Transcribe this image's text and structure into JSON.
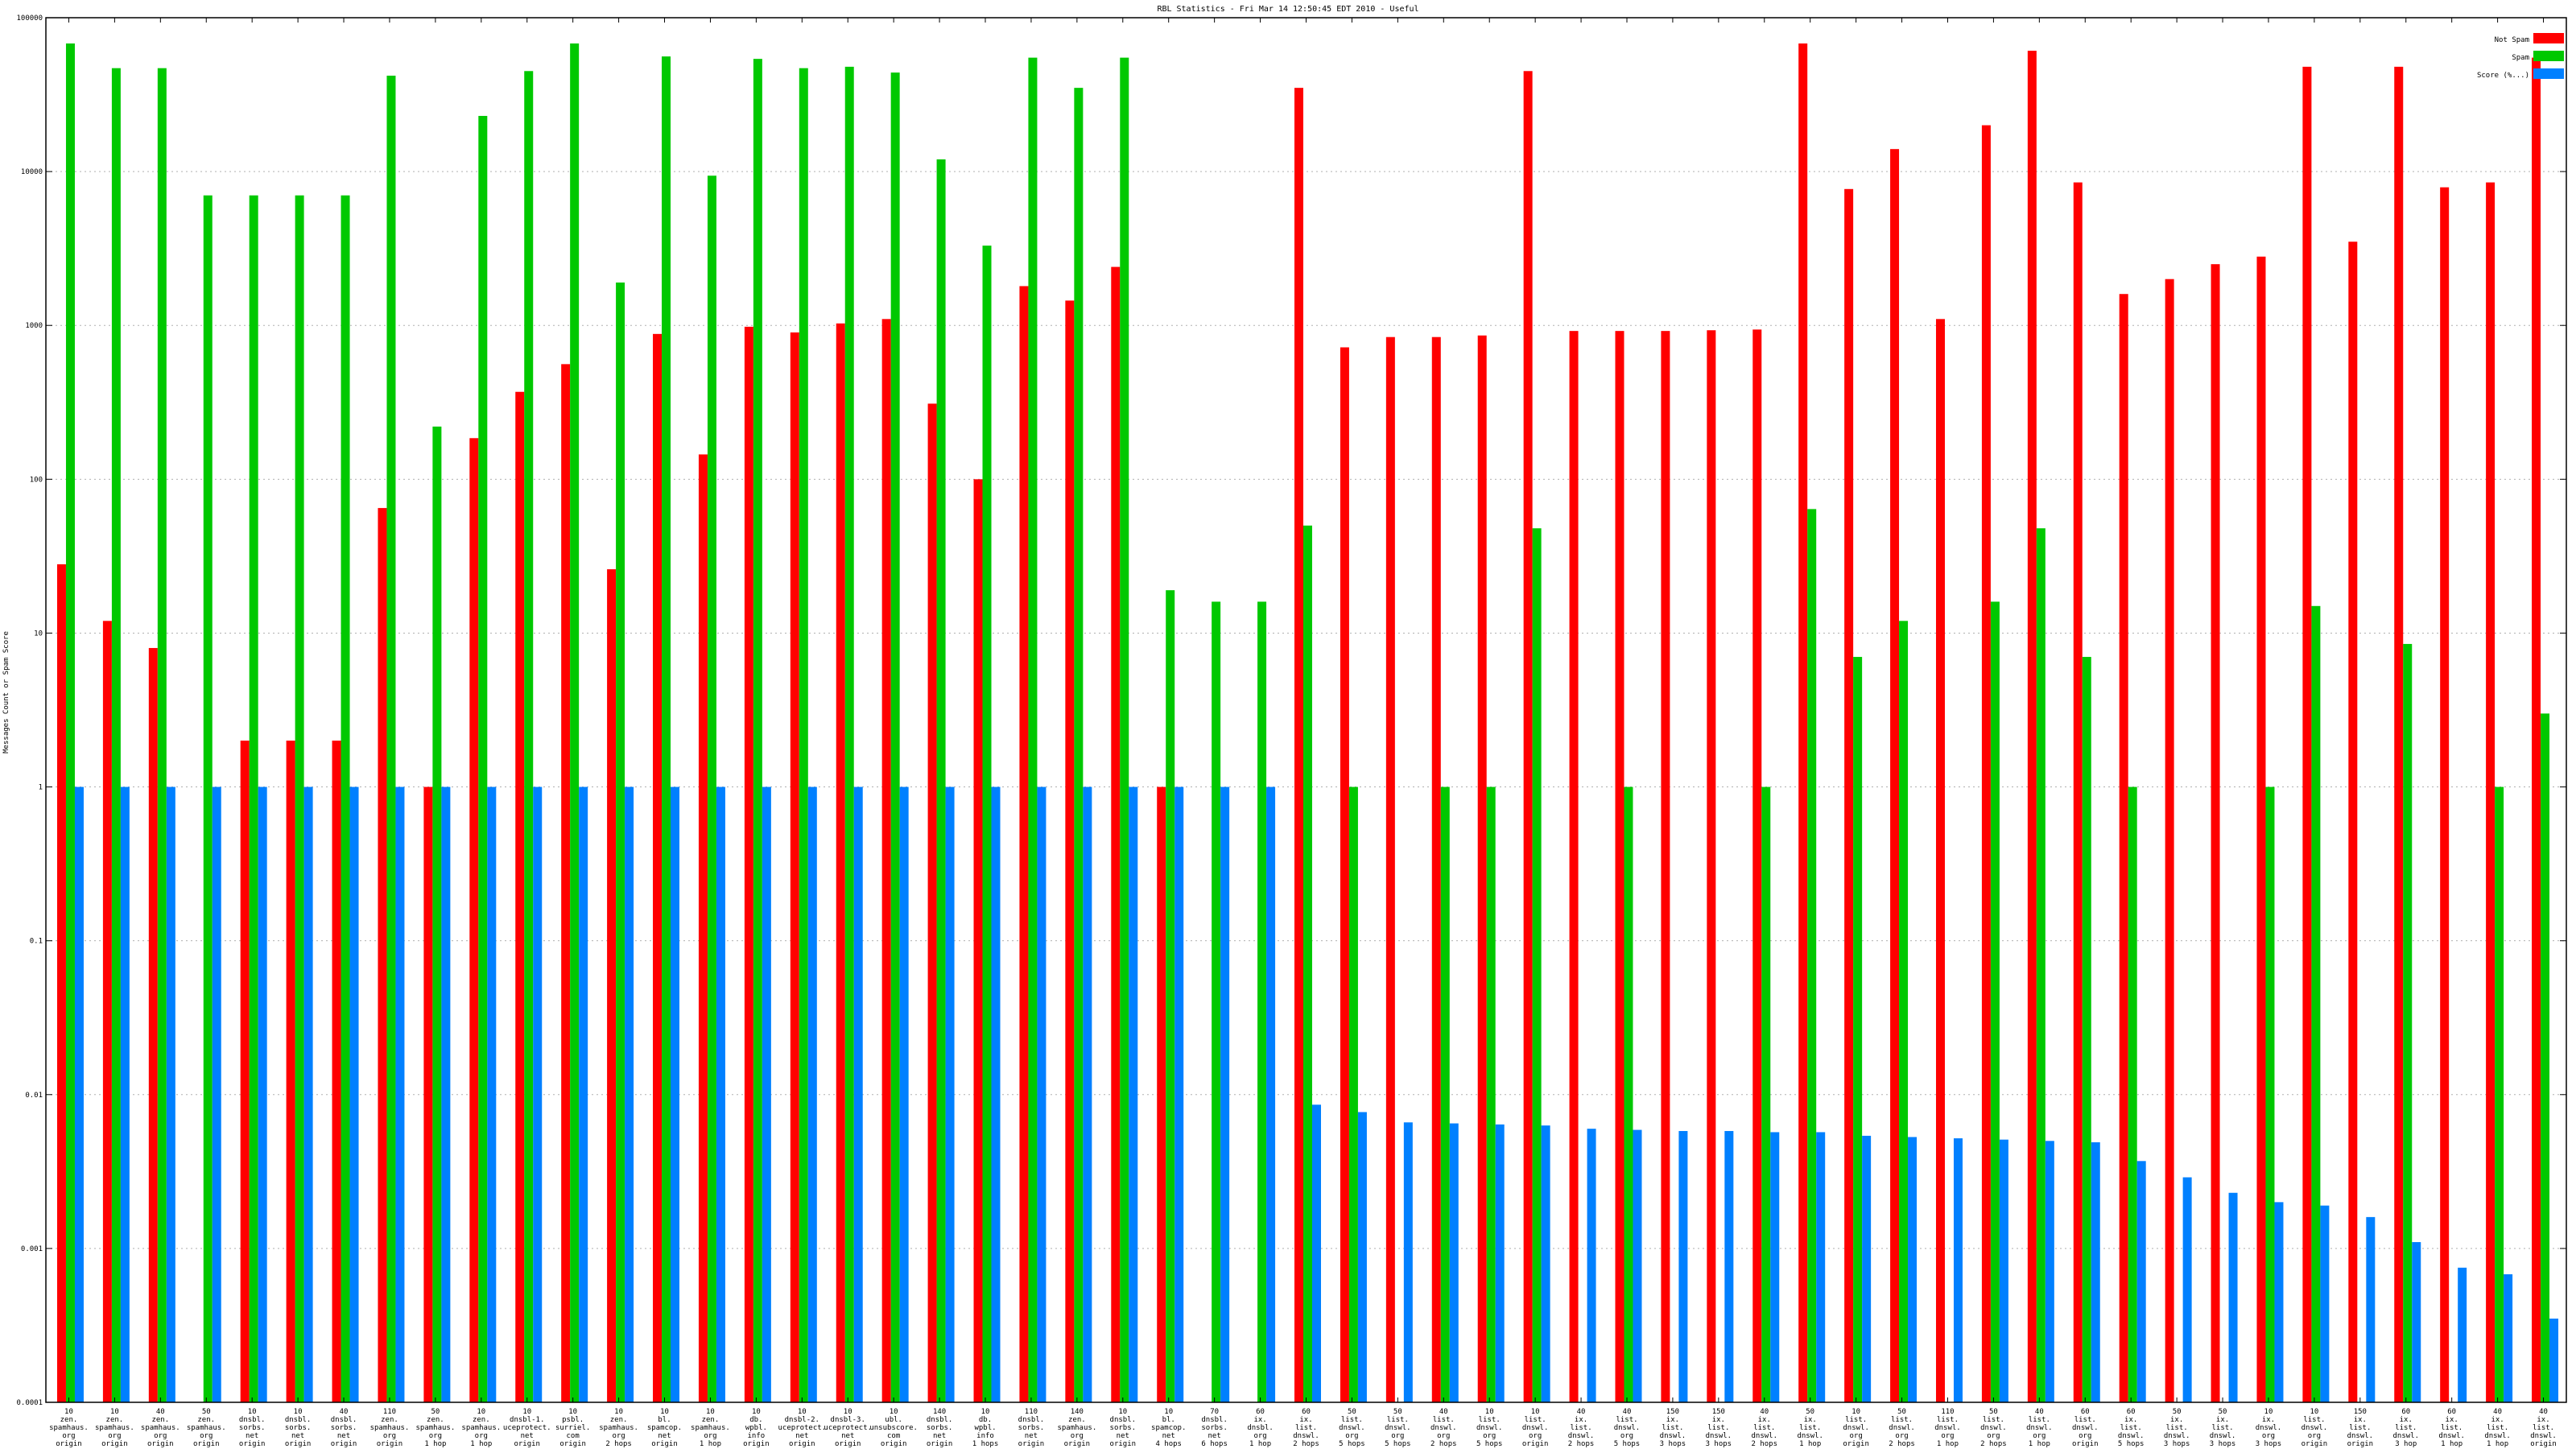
{
  "chart_data": {
    "type": "bar",
    "title": "RBL Statistics - Fri Mar 14 12:50:45 EDT 2010 - Useful",
    "ylabel": "Messages Count or Spam Score",
    "yscale": "log",
    "ylim": [
      0.0001,
      100000
    ],
    "yticks": [
      "0.0001",
      "0.001",
      "0.01",
      "0.1",
      "1",
      "10",
      "100",
      "1000",
      "10000",
      "100000"
    ],
    "grid": true,
    "legend_position": "top-right",
    "colors": {
      "not_spam": "#ff0000",
      "spam": "#00c800",
      "score": "#0080ff"
    },
    "categories": [
      [
        "10",
        "zen.",
        "spamhaus.",
        "org",
        "origin"
      ],
      [
        "10",
        "zen.",
        "spamhaus.",
        "org",
        "origin"
      ],
      [
        "40",
        "zen.",
        "spamhaus.",
        "org",
        "origin"
      ],
      [
        "50",
        "zen.",
        "spamhaus.",
        "org",
        "origin"
      ],
      [
        "10",
        "dnsbl.",
        "sorbs.",
        "net",
        "origin"
      ],
      [
        "10",
        "dnsbl.",
        "sorbs.",
        "net",
        "origin"
      ],
      [
        "40",
        "dnsbl.",
        "sorbs.",
        "net",
        "origin"
      ],
      [
        "110",
        "zen.",
        "spamhaus.",
        "org",
        "origin"
      ],
      [
        "50",
        "zen.",
        "spamhaus.",
        "org",
        "1 hop"
      ],
      [
        "10",
        "zen.",
        "spamhaus.",
        "org",
        "1 hop"
      ],
      [
        "10",
        "dnsbl-1.",
        "uceprotect.",
        "net",
        "origin"
      ],
      [
        "10",
        "psbl.",
        "surriel.",
        "com",
        "origin"
      ],
      [
        "10",
        "zen.",
        "spamhaus.",
        "org",
        "2 hops"
      ],
      [
        "10",
        "bl.",
        "spamcop.",
        "net",
        "origin"
      ],
      [
        "10",
        "zen.",
        "spamhaus.",
        "org",
        "1 hop"
      ],
      [
        "10",
        "db.",
        "wpbl.",
        "info",
        "origin"
      ],
      [
        "10",
        "dnsbl-2.",
        "uceprotect.",
        "net",
        "origin"
      ],
      [
        "10",
        "dnsbl-3.",
        "uceprotect.",
        "net",
        "origin"
      ],
      [
        "10",
        "ubl.",
        "unsubscore.",
        "com",
        "origin"
      ],
      [
        "140",
        "dnsbl.",
        "sorbs.",
        "net",
        "origin"
      ],
      [
        "10",
        "db.",
        "wpbl.",
        "info",
        "1 hops"
      ],
      [
        "110",
        "dnsbl.",
        "sorbs.",
        "net",
        "origin"
      ],
      [
        "140",
        "zen.",
        "spamhaus.",
        "org",
        "origin"
      ],
      [
        "10",
        "dnsbl.",
        "sorbs.",
        "net",
        "origin"
      ],
      [
        "10",
        "bl.",
        "spamcop.",
        "net",
        "4 hops"
      ],
      [
        "70",
        "dnsbl.",
        "sorbs.",
        "net",
        "6 hops"
      ],
      [
        "60",
        "ix.",
        "dnsbl.",
        "org",
        "1 hop"
      ],
      [
        "60",
        "ix.",
        "list.",
        "dnswl.",
        "2 hops"
      ],
      [
        "50",
        "list.",
        "dnswl.",
        "org",
        "5 hops"
      ],
      [
        "50",
        "list.",
        "dnswl.",
        "org",
        "5 hops"
      ],
      [
        "40",
        "list.",
        "dnswl.",
        "org",
        "2 hops"
      ],
      [
        "10",
        "list.",
        "dnswl.",
        "org",
        "5 hops"
      ],
      [
        "10",
        "list.",
        "dnswl.",
        "org",
        "origin"
      ],
      [
        "40",
        "ix.",
        "list.",
        "dnswl.",
        "2 hops"
      ],
      [
        "40",
        "list.",
        "dnswl.",
        "org",
        "5 hops"
      ],
      [
        "150",
        "ix.",
        "list.",
        "dnswl.",
        "3 hops"
      ],
      [
        "150",
        "ix.",
        "list.",
        "dnswl.",
        "3 hops"
      ],
      [
        "40",
        "ix.",
        "list.",
        "dnswl.",
        "2 hops"
      ],
      [
        "50",
        "ix.",
        "list.",
        "dnswl.",
        "1 hop"
      ],
      [
        "10",
        "list.",
        "dnswl.",
        "org",
        "origin"
      ],
      [
        "50",
        "list.",
        "dnswl.",
        "org",
        "2 hops"
      ],
      [
        "110",
        "list.",
        "dnswl.",
        "org",
        "1 hop"
      ],
      [
        "50",
        "list.",
        "dnswl.",
        "org",
        "2 hops"
      ],
      [
        "40",
        "list.",
        "dnswl.",
        "org",
        "1 hop"
      ],
      [
        "60",
        "list.",
        "dnswl.",
        "org",
        "origin"
      ],
      [
        "60",
        "ix.",
        "list.",
        "dnswl.",
        "5 hops"
      ],
      [
        "50",
        "ix.",
        "list.",
        "dnswl.",
        "3 hops"
      ],
      [
        "50",
        "ix.",
        "list.",
        "dnswl.",
        "3 hops"
      ],
      [
        "10",
        "ix.",
        "dnswl.",
        "org",
        "3 hops"
      ],
      [
        "10",
        "list.",
        "dnswl.",
        "org",
        "origin"
      ],
      [
        "150",
        "ix.",
        "list.",
        "dnswl.",
        "origin"
      ],
      [
        "60",
        "ix.",
        "list.",
        "dnswl.",
        "3 hop"
      ],
      [
        "60",
        "ix.",
        "list.",
        "dnswl.",
        "1 hop"
      ],
      [
        "40",
        "ix.",
        "list.",
        "dnswl.",
        "1 hop"
      ],
      [
        "40",
        "ix.",
        "list.",
        "dnswl.",
        "origin"
      ]
    ],
    "series": [
      {
        "name": "Not Spam",
        "key": "not_spam",
        "values": [
          28,
          12,
          8,
          null,
          2,
          2,
          2,
          65,
          1,
          185,
          370,
          560,
          26,
          880,
          145,
          980,
          900,
          1030,
          1100,
          310,
          100,
          1800,
          1450,
          2400,
          1,
          null,
          null,
          35000,
          720,
          840,
          840,
          860,
          45000,
          920,
          920,
          920,
          930,
          940,
          68000,
          7700,
          14000,
          1100,
          20000,
          61000,
          8500,
          1600,
          2000,
          2500,
          2800,
          48000,
          3500,
          48000,
          7900,
          8500,
          55000
        ]
      },
      {
        "name": "Spam",
        "key": "spam",
        "values": [
          68000,
          47000,
          47000,
          7000,
          7000,
          7000,
          7000,
          42000,
          220,
          23000,
          45000,
          68000,
          1900,
          56000,
          9400,
          54000,
          47000,
          48000,
          44000,
          12000,
          3300,
          55000,
          35000,
          55000,
          19,
          16,
          16,
          50,
          1,
          null,
          1,
          1,
          48,
          null,
          1,
          null,
          null,
          1,
          64,
          7,
          12,
          null,
          16,
          48,
          7,
          1,
          null,
          null,
          1,
          15,
          null,
          8.5,
          null,
          1,
          3
        ]
      },
      {
        "name": "Score (%...)",
        "key": "score",
        "values": [
          1,
          1,
          1,
          1,
          1,
          1,
          1,
          1,
          1,
          1,
          1,
          1,
          1,
          1,
          1,
          1,
          1,
          1,
          1,
          1,
          1,
          1,
          1,
          1,
          1,
          1,
          1,
          0.0086,
          0.0077,
          0.0066,
          0.0065,
          0.0064,
          0.0063,
          0.006,
          0.0059,
          0.0058,
          0.0058,
          0.0057,
          0.0057,
          0.0054,
          0.0053,
          0.0052,
          0.0051,
          0.005,
          0.0049,
          0.0037,
          0.0029,
          0.0023,
          0.002,
          0.0019,
          0.0016,
          0.0011,
          0.00075,
          0.00068,
          0.00035
        ]
      }
    ],
    "legend": [
      "Not Spam",
      "Spam",
      "Score (%...)"
    ]
  }
}
